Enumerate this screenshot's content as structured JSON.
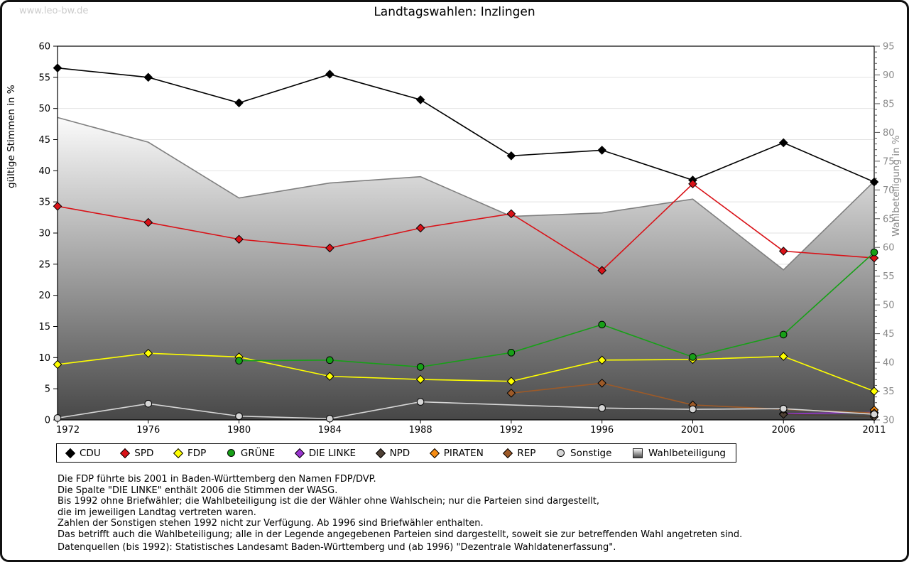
{
  "page": {
    "watermark": "www.leo-bw.de",
    "title": "Landtagswahlen: Inzlingen"
  },
  "chart_data": {
    "type": "line",
    "title": "Landtagswahlen: Inzlingen",
    "x_categories": [
      "1972",
      "1976",
      "1980",
      "1984",
      "1988",
      "1992",
      "1996",
      "2001",
      "2006",
      "2011"
    ],
    "left_axis": {
      "label": "gültige Stimmen in %",
      "min": 0,
      "max": 60,
      "tick_step": 5
    },
    "right_axis": {
      "label": "Wahlbeteiligung in %",
      "min": 30,
      "max": 95,
      "tick_step": 5,
      "minor_tick_step": 1
    },
    "grid": true,
    "legend_position": "bottom",
    "series": [
      {
        "name": "CDU",
        "color": "#000000",
        "marker": "diamond",
        "axis": "left",
        "values": [
          56.5,
          55.0,
          50.9,
          55.5,
          51.4,
          42.4,
          43.3,
          38.5,
          44.5,
          38.2
        ]
      },
      {
        "name": "SPD",
        "color": "#d91218",
        "marker": "diamond",
        "axis": "left",
        "values": [
          34.3,
          31.7,
          29.0,
          27.6,
          30.8,
          33.1,
          24.0,
          37.9,
          27.1,
          26.0
        ]
      },
      {
        "name": "FDP",
        "color": "#ffff00",
        "marker": "diamond",
        "axis": "left",
        "values": [
          8.9,
          10.7,
          10.1,
          7.0,
          6.5,
          6.2,
          9.6,
          9.7,
          10.2,
          4.6
        ]
      },
      {
        "name": "GRÜNE",
        "color": "#17a017",
        "marker": "circle",
        "axis": "left",
        "values": [
          null,
          null,
          9.5,
          9.6,
          8.5,
          10.8,
          15.3,
          10.1,
          13.7,
          26.9
        ]
      },
      {
        "name": "DIE LINKE",
        "color": "#9a35cf",
        "marker": "diamond",
        "axis": "left",
        "values": [
          null,
          null,
          null,
          null,
          null,
          null,
          null,
          null,
          1.0,
          1.2
        ]
      },
      {
        "name": "NPD",
        "color": "#4e4034",
        "marker": "diamond",
        "axis": "left",
        "values": [
          null,
          null,
          null,
          null,
          null,
          null,
          null,
          null,
          0.9,
          0.5
        ]
      },
      {
        "name": "PIRATEN",
        "color": "#f68c12",
        "marker": "diamond",
        "axis": "left",
        "values": [
          null,
          null,
          null,
          null,
          null,
          null,
          null,
          null,
          null,
          1.6
        ]
      },
      {
        "name": "REP",
        "color": "#9d5a28",
        "marker": "diamond",
        "axis": "left",
        "values": [
          null,
          null,
          null,
          null,
          null,
          4.3,
          5.9,
          2.4,
          1.7,
          1.1
        ]
      },
      {
        "name": "Sonstige",
        "color": "#d6d6d6",
        "marker": "circle",
        "axis": "left",
        "values": [
          0.3,
          2.6,
          0.6,
          0.2,
          2.9,
          null,
          1.9,
          1.7,
          1.8,
          0.9
        ]
      },
      {
        "name": "Wahlbeteiligung",
        "color": "#7f7f7f",
        "marker": "square",
        "axis": "right",
        "style": "area",
        "fill_top": "#fbfbfb",
        "fill_bottom": "#474747",
        "values": [
          82.6,
          78.3,
          68.6,
          71.2,
          72.3,
          65.4,
          66.0,
          68.4,
          56.1,
          71.5
        ]
      }
    ]
  },
  "notes": [
    "Die FDP führte bis 2001 in Baden-Württemberg den Namen FDP/DVP.",
    "Die Spalte \"DIE LINKE\" enthält 2006 die Stimmen der WASG.",
    "Bis 1992 ohne Briefwähler; die Wahlbeteiligung ist die der Wähler ohne Wahlschein; nur die Parteien sind dargestellt,",
    "die im jeweiligen Landtag vertreten waren.",
    "Zahlen der Sonstigen stehen 1992 nicht zur Verfügung. Ab 1996 sind Briefwähler enthalten.",
    "Das betrifft auch die Wahlbeteiligung; alle in der Legende angegebenen Parteien sind dargestellt, soweit sie zur betreffenden Wahl angetreten sind."
  ],
  "source": "Datenquellen (bis 1992): Statistisches Landesamt Baden-Württemberg und (ab 1996) \"Dezentrale Wahldatenerfassung\"."
}
